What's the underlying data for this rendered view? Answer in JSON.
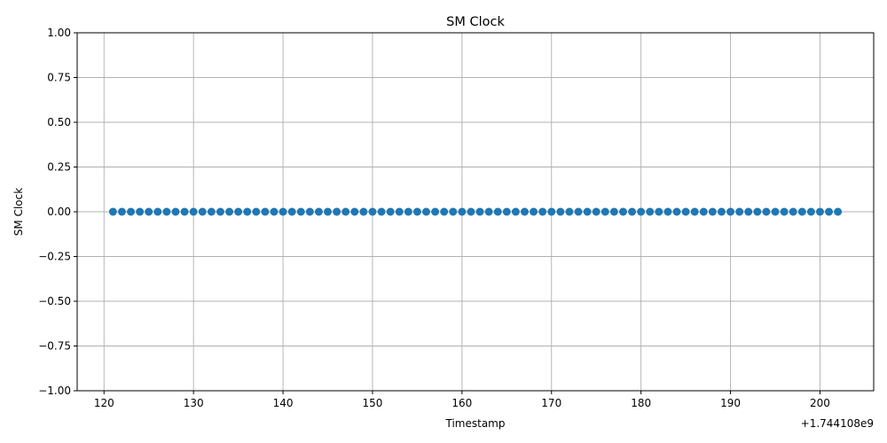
{
  "chart_data": {
    "type": "scatter",
    "title": "SM Clock",
    "xlabel": "Timestamp",
    "ylabel": "SM Clock",
    "x_offset_label": "+1.744108e9",
    "xlim": [
      117,
      206
    ],
    "ylim": [
      -1.0,
      1.0
    ],
    "x_ticks": [
      120,
      130,
      140,
      150,
      160,
      170,
      180,
      190,
      200
    ],
    "x_tick_labels": [
      "120",
      "130",
      "140",
      "150",
      "160",
      "170",
      "180",
      "190",
      "200"
    ],
    "y_ticks": [
      -1.0,
      -0.75,
      -0.5,
      -0.25,
      0.0,
      0.25,
      0.5,
      0.75,
      1.0
    ],
    "y_tick_labels": [
      "−1.00",
      "−0.75",
      "−0.50",
      "−0.25",
      "0.00",
      "0.25",
      "0.50",
      "0.75",
      "1.00"
    ],
    "grid": true,
    "series": [
      {
        "color": "#1f77b4",
        "x": [
          121,
          122,
          123,
          124,
          125,
          126,
          127,
          128,
          129,
          130,
          131,
          132,
          133,
          134,
          135,
          136,
          137,
          138,
          139,
          140,
          141,
          142,
          143,
          144,
          145,
          146,
          147,
          148,
          149,
          150,
          151,
          152,
          153,
          154,
          155,
          156,
          157,
          158,
          159,
          160,
          161,
          162,
          163,
          164,
          165,
          166,
          167,
          168,
          169,
          170,
          171,
          172,
          173,
          174,
          175,
          176,
          177,
          178,
          179,
          180,
          181,
          182,
          183,
          184,
          185,
          186,
          187,
          188,
          189,
          190,
          191,
          192,
          193,
          194,
          195,
          196,
          197,
          198,
          199,
          200,
          201,
          202
        ],
        "y": [
          0,
          0,
          0,
          0,
          0,
          0,
          0,
          0,
          0,
          0,
          0,
          0,
          0,
          0,
          0,
          0,
          0,
          0,
          0,
          0,
          0,
          0,
          0,
          0,
          0,
          0,
          0,
          0,
          0,
          0,
          0,
          0,
          0,
          0,
          0,
          0,
          0,
          0,
          0,
          0,
          0,
          0,
          0,
          0,
          0,
          0,
          0,
          0,
          0,
          0,
          0,
          0,
          0,
          0,
          0,
          0,
          0,
          0,
          0,
          0,
          0,
          0,
          0,
          0,
          0,
          0,
          0,
          0,
          0,
          0,
          0,
          0,
          0,
          0,
          0,
          0,
          0,
          0,
          0,
          0,
          0,
          0
        ]
      }
    ]
  }
}
